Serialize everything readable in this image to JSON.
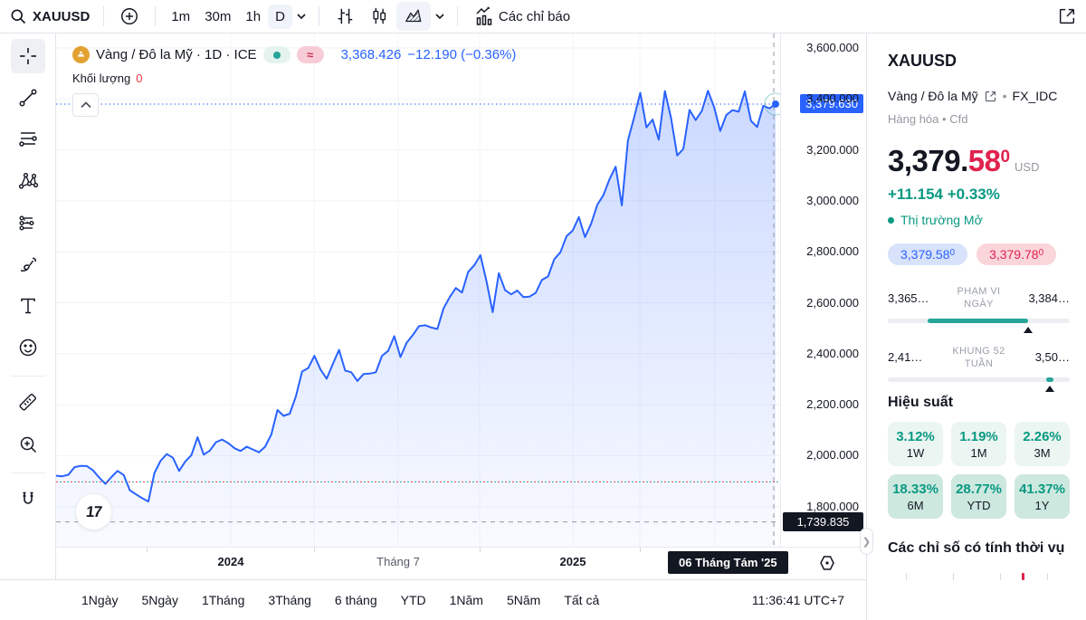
{
  "toolbar": {
    "symbol": "XAUUSD",
    "intervals": [
      {
        "label": "1m",
        "selected": false
      },
      {
        "label": "30m",
        "selected": false
      },
      {
        "label": "1h",
        "selected": false
      },
      {
        "label": "D",
        "selected": true
      }
    ],
    "indicators_label": "Các chỉ báo"
  },
  "legend": {
    "title": "Vàng / Đô la Mỹ · 1D · ICE",
    "approx_badge": "≈",
    "price": "3,368.426",
    "change": "−12.190 (−0.36%)",
    "volume_label": "Khối lượng",
    "volume_value": "0"
  },
  "crosshair": {
    "price_label": "1,739.835",
    "date_label": "06 Tháng Tám '25"
  },
  "bottom_bar": {
    "ranges": [
      "1Ngày",
      "5Ngày",
      "1Tháng",
      "3Tháng",
      "6 tháng",
      "YTD",
      "1Năm",
      "5Năm",
      "Tất cả"
    ],
    "clock": "11:36:41 UTC+7"
  },
  "panel": {
    "symbol": "XAUUSD",
    "name": "Vàng / Đô la Mỹ",
    "exchange": "FX_IDC",
    "category": "Hàng hóa",
    "instrument_type": "Cfd",
    "price_int": "3,379.",
    "price_frac": "58",
    "price_sup": "0",
    "currency": "USD",
    "change_text": "+11.154  +0.33%",
    "market_status": "Thị trường Mở",
    "bid": "3,379.58",
    "bid_sup": "0",
    "ask": "3,379.78",
    "ask_sup": "0",
    "day_range": {
      "low": "3,365…",
      "label_line1": "PHẠM VI",
      "label_line2": "NGÀY",
      "high": "3,384…",
      "fill_start": 22,
      "fill_end": 77,
      "marker": 77
    },
    "week52_range": {
      "low": "2,41…",
      "label_line1": "KHUNG 52",
      "label_line2": "TUẦN",
      "high": "3,50…",
      "fill_start": 87,
      "fill_end": 91,
      "marker": 89
    },
    "performance_title": "Hiệu suất",
    "performance": [
      {
        "value": "3.12%",
        "label": "1W",
        "tone": "light"
      },
      {
        "value": "1.19%",
        "label": "1M",
        "tone": "light"
      },
      {
        "value": "2.26%",
        "label": "3M",
        "tone": "light"
      },
      {
        "value": "18.33%",
        "label": "6M",
        "tone": "dark"
      },
      {
        "value": "28.77%",
        "label": "YTD",
        "tone": "dark"
      },
      {
        "value": "41.37%",
        "label": "1Y",
        "tone": "dark"
      }
    ],
    "seasonal_title": "Các chỉ số có tính thời vụ"
  },
  "colors": {
    "accent_blue": "#2962ff",
    "up_green": "#089981",
    "down_red": "#f23645",
    "teal": "#26a69a",
    "label_dark": "#131722",
    "muted": "#787b86"
  },
  "chart_data": {
    "type": "area",
    "title": "Vàng / Đô la Mỹ (XAUUSD) 1D ICE",
    "interval": "1D",
    "current_price": 3379.63,
    "current_price_label": "3,379.630",
    "crosshair_price": 1739.835,
    "baseline_dotted_price": 1897,
    "x_labels": [
      {
        "text": "2024",
        "x": 193,
        "bold": true
      },
      {
        "text": "Tháng 7",
        "x": 378,
        "bold": false
      },
      {
        "text": "2025",
        "x": 571,
        "bold": true
      }
    ],
    "y_ticks": [
      {
        "label": "3,600.000",
        "price": 3600
      },
      {
        "label": "3,400.000",
        "price": 3400
      },
      {
        "label": "3,200.000",
        "price": 3200
      },
      {
        "label": "3,000.000",
        "price": 3000
      },
      {
        "label": "2,800.000",
        "price": 2800
      },
      {
        "label": "2,600.000",
        "price": 2600
      },
      {
        "label": "2,400.000",
        "price": 2400
      },
      {
        "label": "2,200.000",
        "price": 2200
      },
      {
        "label": "2,000.000",
        "price": 2000
      },
      {
        "label": "1,800.000",
        "price": 1800
      }
    ],
    "ylim": [
      1665,
      3655
    ],
    "series": [
      {
        "name": "XAUUSD close",
        "values": [
          1921,
          1919,
          1925,
          1955,
          1960,
          1959,
          1942,
          1914,
          1889,
          1916,
          1940,
          1924,
          1864,
          1848,
          1833,
          1820,
          1932,
          1980,
          2006,
          1992,
          1940,
          1977,
          2002,
          2072,
          2004,
          2020,
          2053,
          2063,
          2049,
          2029,
          2018,
          2035,
          2024,
          2013,
          2035,
          2083,
          2179,
          2156,
          2165,
          2233,
          2330,
          2344,
          2392,
          2338,
          2302,
          2360,
          2415,
          2334,
          2327,
          2293,
          2320,
          2322,
          2327,
          2392,
          2411,
          2469,
          2387,
          2443,
          2473,
          2508,
          2512,
          2503,
          2497,
          2578,
          2622,
          2658,
          2640,
          2721,
          2747,
          2787,
          2684,
          2563,
          2716,
          2650,
          2633,
          2648,
          2622,
          2624,
          2639,
          2690,
          2703,
          2771,
          2798,
          2861,
          2883,
          2936,
          2858,
          2910,
          2984,
          3022,
          3085,
          3134,
          2982,
          3238,
          3327,
          3424,
          3288,
          3319,
          3240,
          3431,
          3325,
          3178,
          3204,
          3357,
          3317,
          3353,
          3432,
          3368,
          3274,
          3337,
          3356,
          3350,
          3430,
          3314,
          3290,
          3373,
          3363,
          3379.63
        ]
      }
    ],
    "legend_position": "top-left",
    "grid": true
  }
}
